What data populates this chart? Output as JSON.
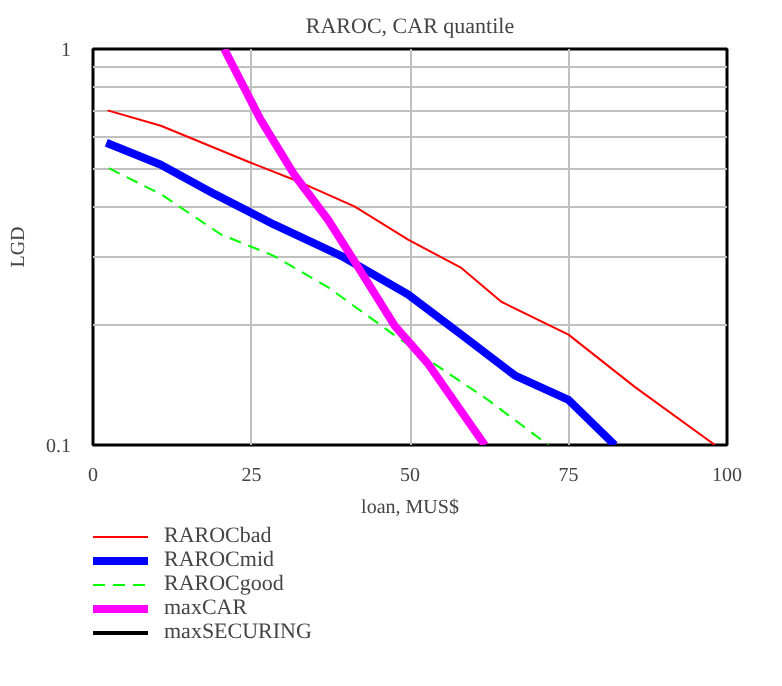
{
  "chart_data": {
    "type": "line",
    "title": "RAROC, CAR quantile",
    "xlabel": "loan, MUS$",
    "ylabel": "LGD",
    "log": "y",
    "grid": true,
    "legend": "bottom left",
    "xlim": [
      0,
      100
    ],
    "xticks": [
      0,
      25,
      50,
      75,
      100
    ],
    "ylim": [
      0.1,
      1
    ],
    "yticks": [
      {
        "value": 0.1,
        "label": "0.1"
      },
      {
        "value": 0.2,
        "label": null
      },
      {
        "value": 0.3,
        "label": null
      },
      {
        "value": 0.4,
        "label": null
      },
      {
        "value": 0.5,
        "label": null
      },
      {
        "value": 0.6,
        "label": null
      },
      {
        "value": 0.7,
        "label": null
      },
      {
        "value": 0.8,
        "label": null
      },
      {
        "value": 0.9,
        "label": null
      },
      {
        "value": 1,
        "label": "1"
      }
    ],
    "series": [
      {
        "name": "RAROCbad",
        "color": "#ff0000",
        "line_style": "solid",
        "x": [
          2.3,
          10.7,
          24.4,
          32.8,
          41.3,
          49.7,
          58.1,
          64.4,
          75,
          85.5,
          98.1
        ],
        "values": [
          0.7,
          0.64,
          0.52,
          0.46,
          0.4,
          0.33,
          0.28,
          0.23,
          0.19,
          0.14,
          0.1
        ]
      },
      {
        "name": "RAROCmid",
        "color": "#0000ff",
        "line_style": "solid",
        "x": [
          2.1,
          10.7,
          19.2,
          28.6,
          39.2,
          49.7,
          58.1,
          66.5,
          75,
          82.3
        ],
        "values": [
          0.58,
          0.51,
          0.43,
          0.36,
          0.3,
          0.24,
          0.19,
          0.15,
          0.13,
          0.1
        ]
      },
      {
        "name": "RAROCgood",
        "color": "#00ff00",
        "line_style": "dashed",
        "x": [
          2.5,
          10.7,
          20.2,
          28.6,
          37.1,
          45.5,
          53.9,
          62.3,
          71.8
        ],
        "values": [
          0.5,
          0.43,
          0.34,
          0.3,
          0.25,
          0.2,
          0.16,
          0.13,
          0.1
        ]
      },
      {
        "name": "maxCAR",
        "color": "#ff00ff",
        "line_style": "solid",
        "x": [
          20.7,
          26.5,
          31.8,
          37.1,
          41.3,
          47.6,
          52.9,
          61.8
        ],
        "values": [
          1.0,
          0.66,
          0.48,
          0.37,
          0.29,
          0.2,
          0.16,
          0.1
        ]
      },
      {
        "name": "maxSECURING",
        "color": "#000000",
        "line_style": "solid"
      }
    ]
  }
}
